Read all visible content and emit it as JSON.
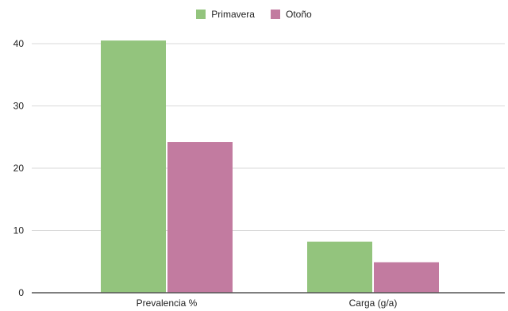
{
  "chart_data": {
    "type": "bar",
    "categories": [
      "Prevalencia %",
      "Carga (g/a)"
    ],
    "series": [
      {
        "name": "Primavera",
        "values": [
          40.5,
          8.2
        ],
        "color": "#93c47d"
      },
      {
        "name": "Otoño",
        "values": [
          24.2,
          4.9
        ],
        "color": "#c27ba0"
      }
    ],
    "title": "",
    "xlabel": "",
    "ylabel": "",
    "ylim": [
      0,
      40
    ],
    "yticks": [
      0,
      10,
      20,
      30,
      40
    ],
    "ytick_labels": [
      "0",
      "10",
      "20",
      "30",
      "40"
    ],
    "grid": true,
    "legend_position": "top"
  }
}
